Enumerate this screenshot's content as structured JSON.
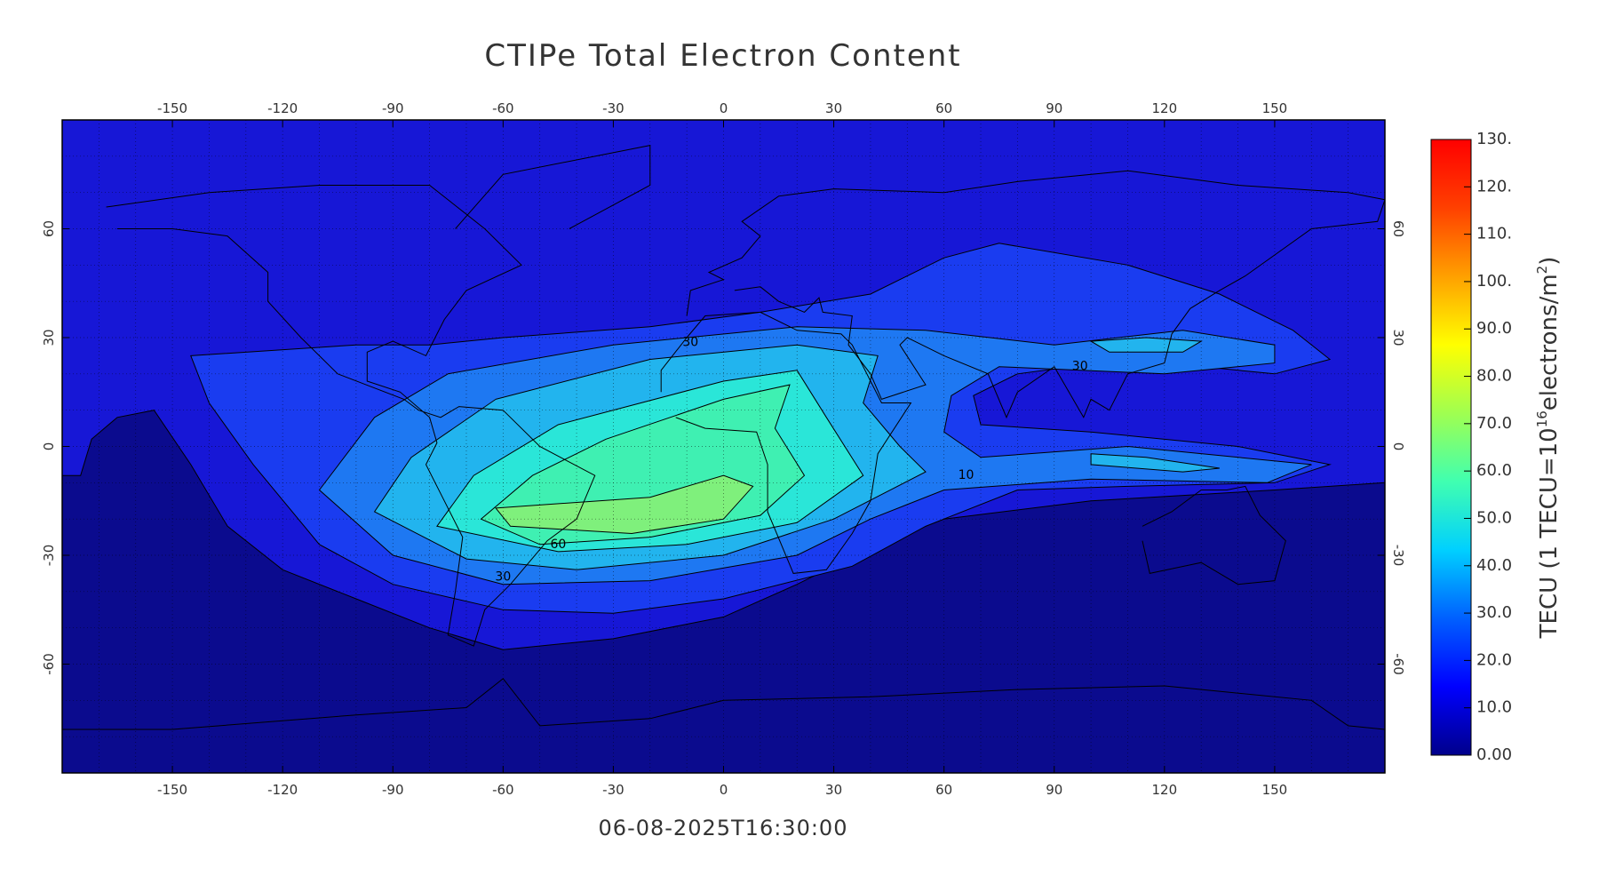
{
  "chart_data": {
    "type": "contour-map",
    "title": "CTIPe Total Electron Content",
    "timestamp": "06-08-2025T16:30:00",
    "xlim": [
      -180,
      180
    ],
    "ylim": [
      -90,
      90
    ],
    "xticks": [
      -150,
      -120,
      -90,
      -60,
      -30,
      0,
      30,
      60,
      90,
      120,
      150
    ],
    "yticks": [
      -60,
      -30,
      0,
      30,
      60
    ],
    "grid": true,
    "grid_spacing": 10,
    "background_color": "#0b0b8e",
    "contour_levels": [
      10,
      20,
      30,
      40,
      50,
      60,
      70
    ],
    "contour_colors": [
      "#1717d6",
      "#1a3cf0",
      "#1e78f2",
      "#22b4ee",
      "#2ae6d8",
      "#3ff0b2",
      "#7ff07c"
    ],
    "contour_labels": [
      30,
      60,
      30,
      10,
      30
    ],
    "colorbar": {
      "zlim": [
        0,
        130
      ],
      "colors": [
        "#00008b",
        "#0000ff",
        "#0060ff",
        "#00d0ff",
        "#40ffb0",
        "#a0ff50",
        "#ffff00",
        "#ffa000",
        "#ff4000",
        "#ff0000"
      ],
      "ticks": [
        {
          "value": 0,
          "label": "0.00"
        },
        {
          "value": 10,
          "label": "10.0"
        },
        {
          "value": 20,
          "label": "20.0"
        },
        {
          "value": 30,
          "label": "30.0"
        },
        {
          "value": 40,
          "label": "40.0"
        },
        {
          "value": 50,
          "label": "50.0"
        },
        {
          "value": 60,
          "label": "60.0"
        },
        {
          "value": 70,
          "label": "70.0"
        },
        {
          "value": 80,
          "label": "80.0"
        },
        {
          "value": 90,
          "label": "90.0"
        },
        {
          "value": 100,
          "label": "100."
        },
        {
          "value": 110,
          "label": "110."
        },
        {
          "value": 120,
          "label": "120."
        },
        {
          "value": 130,
          "label": "130."
        }
      ],
      "label_parts": [
        "TECU (1 TECU=10",
        "16",
        "electrons/m",
        "2",
        ")"
      ]
    }
  }
}
